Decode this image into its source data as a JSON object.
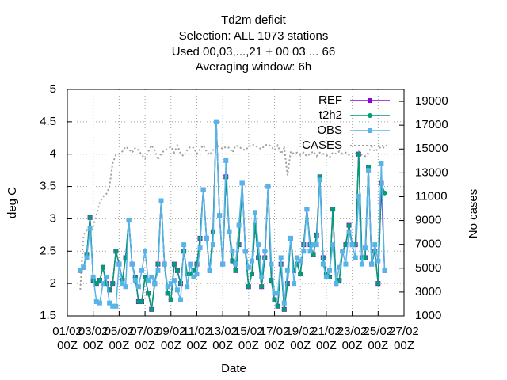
{
  "chart_data": {
    "type": "line",
    "title_lines": [
      "Td2m deficit",
      "Selection: ALL   1073 stations",
      "Used  00,03,...,21  + 00 03 ... 66",
      "Averaging window:  6h"
    ],
    "xlabel": "Date",
    "ylabel": "deg C",
    "y2label": "No cases",
    "xlim": [
      0,
      26
    ],
    "ylim": [
      1.5,
      5
    ],
    "y2lim": [
      1000,
      20000
    ],
    "xticks": [
      {
        "value": 0,
        "label": "01/02\n00Z"
      },
      {
        "value": 2,
        "label": "03/02\n00Z"
      },
      {
        "value": 4,
        "label": "05/02\n00Z"
      },
      {
        "value": 6,
        "label": "07/02\n00Z"
      },
      {
        "value": 8,
        "label": "09/02\n00Z"
      },
      {
        "value": 10,
        "label": "11/02\n00Z"
      },
      {
        "value": 12,
        "label": "13/02\n00Z"
      },
      {
        "value": 14,
        "label": "15/02\n00Z"
      },
      {
        "value": 16,
        "label": "17/02\n00Z"
      },
      {
        "value": 18,
        "label": "19/02\n00Z"
      },
      {
        "value": 20,
        "label": "21/02\n00Z"
      },
      {
        "value": 22,
        "label": "23/02\n00Z"
      },
      {
        "value": 24,
        "label": "25/02\n00Z"
      },
      {
        "value": 26,
        "label": "27/02\n00Z"
      }
    ],
    "yticks": [
      1.5,
      2,
      2.5,
      3,
      3.5,
      4,
      4.5,
      5
    ],
    "y2ticks": [
      1000,
      3000,
      5000,
      7000,
      9000,
      11000,
      13000,
      15000,
      17000,
      19000
    ],
    "grid": true,
    "legend": "top-right",
    "x": [
      1,
      1.25,
      1.5,
      1.75,
      2,
      2.25,
      2.5,
      2.75,
      3,
      3.25,
      3.5,
      3.75,
      4,
      4.25,
      4.5,
      4.75,
      5,
      5.25,
      5.5,
      5.75,
      6,
      6.25,
      6.5,
      6.75,
      7,
      7.25,
      7.5,
      7.75,
      8,
      8.25,
      8.5,
      8.75,
      9,
      9.25,
      9.5,
      9.75,
      10,
      10.25,
      10.5,
      10.75,
      11,
      11.25,
      11.5,
      11.75,
      12,
      12.25,
      12.5,
      12.75,
      13,
      13.25,
      13.5,
      13.75,
      14,
      14.25,
      14.5,
      14.75,
      15,
      15.25,
      15.5,
      15.75,
      16,
      16.25,
      16.5,
      16.75,
      17,
      17.25,
      17.5,
      17.75,
      18,
      18.25,
      18.5,
      18.75,
      19,
      19.25,
      19.5,
      19.75,
      20,
      20.25,
      20.5,
      20.75,
      21,
      21.25,
      21.5,
      21.75,
      22,
      22.25,
      22.5,
      22.75,
      23,
      23.25,
      23.5,
      23.75,
      24,
      24.25,
      24.5
    ],
    "series": [
      {
        "name": "REF",
        "color": "#9400d3",
        "marker": "square",
        "values": [
          2.2,
          2.25,
          2.45,
          3.02,
          2.05,
          2.0,
          2.05,
          2.25,
          2.0,
          1.9,
          2.0,
          2.5,
          2.3,
          2.05,
          2.4,
          2.98,
          2.3,
          2.1,
          1.72,
          1.72,
          2.1,
          1.85,
          1.6,
          2.0,
          2.3,
          3.28,
          2.3,
          1.85,
          1.75,
          2.3,
          2.2,
          2.0,
          2.5,
          2.15,
          2.15,
          2.2,
          2.3,
          2.7,
          3.45,
          2.7,
          2.2,
          2.8,
          4.5,
          3.05,
          2.3,
          3.65,
          2.8,
          2.35,
          2.2,
          2.6,
          3.55,
          2.5,
          1.95,
          2.15,
          2.9,
          2.4,
          1.95,
          2.4,
          3.5,
          2.05,
          1.75,
          1.65,
          2.3,
          1.6,
          2.0,
          2.7,
          2.2,
          2.3,
          2.15,
          2.6,
          3.15,
          2.6,
          2.45,
          2.75,
          3.65,
          2.4,
          2.15,
          2.1,
          3.15,
          2.0,
          2.05,
          2.5,
          2.6,
          2.9,
          2.6,
          2.6,
          4.0,
          2.4,
          2.4,
          3.8,
          2.3,
          2.5,
          2.0,
          3.55,
          2.2
        ]
      },
      {
        "name": "t2h2",
        "color": "#009e73",
        "marker": "circle",
        "values": [
          2.2,
          2.25,
          2.45,
          3.02,
          2.05,
          2.0,
          2.05,
          2.25,
          2.0,
          1.9,
          2.0,
          2.5,
          2.3,
          2.05,
          2.4,
          2.98,
          2.3,
          2.1,
          1.72,
          1.72,
          2.1,
          1.85,
          1.6,
          2.0,
          2.3,
          3.28,
          2.3,
          1.85,
          1.75,
          2.3,
          2.2,
          2.0,
          2.5,
          2.15,
          2.15,
          2.2,
          2.3,
          2.7,
          3.45,
          2.7,
          2.2,
          2.8,
          4.5,
          3.05,
          2.3,
          3.65,
          2.8,
          2.35,
          2.2,
          2.6,
          3.55,
          2.5,
          1.95,
          2.15,
          2.9,
          2.4,
          1.95,
          2.4,
          3.5,
          2.05,
          1.75,
          1.65,
          2.3,
          1.6,
          2.0,
          2.7,
          2.2,
          2.3,
          2.15,
          2.6,
          3.15,
          2.6,
          2.45,
          2.75,
          3.65,
          2.4,
          2.15,
          2.1,
          3.15,
          2.0,
          2.05,
          2.5,
          2.6,
          2.9,
          2.6,
          2.6,
          4.0,
          2.4,
          2.4,
          3.8,
          2.3,
          2.5,
          2.0,
          3.55,
          3.4
        ]
      },
      {
        "name": "OBS",
        "color": "#56b4e9",
        "marker": "square",
        "values": [
          2.2,
          2.25,
          2.4,
          2.85,
          2.1,
          1.72,
          1.7,
          2.0,
          2.1,
          1.7,
          1.65,
          1.65,
          2.3,
          2.0,
          1.95,
          2.98,
          2.3,
          2.05,
          1.95,
          2.2,
          2.5,
          2.05,
          2.1,
          2.0,
          2.2,
          3.28,
          2.3,
          1.95,
          2.0,
          2.05,
          1.9,
          1.75,
          2.6,
          1.95,
          2.3,
          2.1,
          2.15,
          2.55,
          3.45,
          2.7,
          2.2,
          2.6,
          4.5,
          3.05,
          2.3,
          3.9,
          2.8,
          2.5,
          2.3,
          2.9,
          3.55,
          2.5,
          2.25,
          2.35,
          3.1,
          2.6,
          2.1,
          2.5,
          3.5,
          2.3,
          1.85,
          1.85,
          2.4,
          1.7,
          2.2,
          2.7,
          2.0,
          2.4,
          2.35,
          2.5,
          3.15,
          2.5,
          2.6,
          2.6,
          3.6,
          2.3,
          2.1,
          2.2,
          2.6,
          2.0,
          2.25,
          2.5,
          2.3,
          2.8,
          2.6,
          2.4,
          3.35,
          2.3,
          2.55,
          3.75,
          2.3,
          2.6,
          2.35,
          3.85,
          2.2
        ]
      },
      {
        "name": "CASES",
        "color": "#a0a0a0",
        "axis": "y2",
        "dashed": true,
        "values": [
          3200,
          7800,
          8200,
          8000,
          8500,
          9500,
          10500,
          11000,
          11200,
          11800,
          13800,
          14500,
          14600,
          14800,
          15200,
          15000,
          14700,
          15100,
          14900,
          14500,
          14200,
          14800,
          15300,
          14900,
          14100,
          14600,
          14900,
          15000,
          15200,
          14700,
          15300,
          14600,
          14400,
          14900,
          15200,
          15100,
          14600,
          15000,
          15300,
          14800,
          14500,
          14900,
          15300,
          15200,
          15000,
          15200,
          15100,
          14700,
          15300,
          15200,
          15000,
          14900,
          15200,
          15400,
          15300,
          15100,
          15000,
          15300,
          15400,
          15200,
          14900,
          15300,
          14600,
          15100,
          12800,
          14800,
          14600,
          14700,
          14500,
          14700,
          14400,
          14600,
          14800,
          14400,
          14700,
          14600,
          14500,
          14300,
          14700,
          14600,
          14800,
          14600,
          14700,
          14500,
          14400,
          14600,
          14800,
          14500,
          14400,
          14700,
          15200,
          14800,
          15000,
          15200,
          15100
        ]
      }
    ]
  }
}
